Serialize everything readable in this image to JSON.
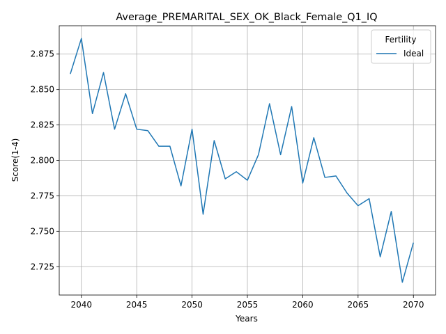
{
  "chart_data": {
    "type": "line",
    "title": "Average_PREMARITAL_SEX_OK_Black_Female_Q1_IQ",
    "xlabel": "Years",
    "ylabel": "Score(1-4)",
    "xlim": [
      2038,
      2072
    ],
    "ylim": [
      2.705,
      2.895
    ],
    "x_ticks": [
      2040,
      2045,
      2050,
      2055,
      2060,
      2065,
      2070
    ],
    "y_ticks": [
      2.725,
      2.75,
      2.775,
      2.8,
      2.825,
      2.85,
      2.875
    ],
    "x_tick_labels": [
      "2040",
      "2045",
      "2050",
      "2055",
      "2060",
      "2065",
      "2070"
    ],
    "y_tick_labels": [
      "2.725",
      "2.750",
      "2.775",
      "2.800",
      "2.825",
      "2.850",
      "2.875"
    ],
    "grid": true,
    "legend": {
      "title": "Fertility",
      "placement": "top-right"
    },
    "series": [
      {
        "name": "Ideal",
        "color": "#1f77b4",
        "x": [
          2039,
          2040,
          2041,
          2042,
          2043,
          2044,
          2045,
          2046,
          2047,
          2048,
          2049,
          2050,
          2051,
          2052,
          2053,
          2054,
          2055,
          2056,
          2057,
          2058,
          2059,
          2060,
          2061,
          2062,
          2063,
          2064,
          2065,
          2066,
          2067,
          2068,
          2069,
          2070
        ],
        "values": [
          2.861,
          2.886,
          2.833,
          2.862,
          2.822,
          2.847,
          2.822,
          2.821,
          2.81,
          2.81,
          2.782,
          2.822,
          2.762,
          2.814,
          2.787,
          2.792,
          2.786,
          2.804,
          2.84,
          2.804,
          2.838,
          2.784,
          2.816,
          2.788,
          2.789,
          2.777,
          2.768,
          2.773,
          2.732,
          2.764,
          2.714,
          2.742
        ]
      }
    ]
  }
}
